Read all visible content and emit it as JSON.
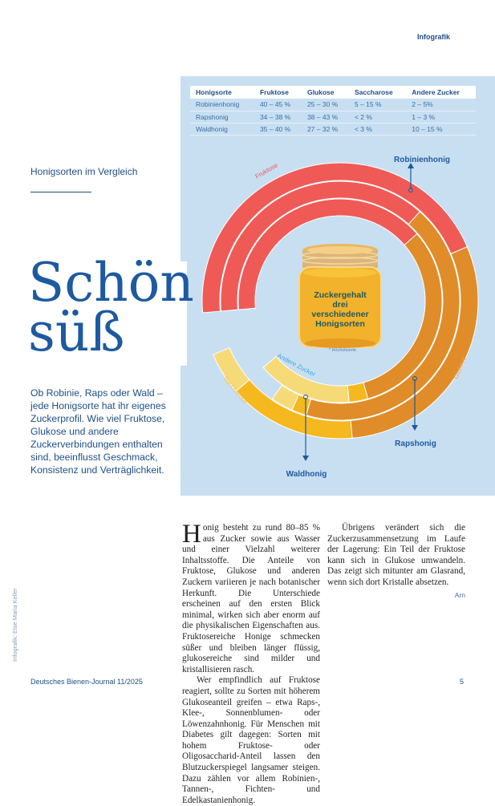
{
  "header": {
    "kicker": "Infografik"
  },
  "infographic": {
    "colors": {
      "background": "#c8dff2",
      "Fruktose": "#ef5a56",
      "Glukose": "#e08c29",
      "Saccharose": "#f6b81f",
      "Andere Zucker": "#f6da78",
      "text": "#1d4f86"
    },
    "table": {
      "headers": [
        "Honigsorte",
        "Fruktose",
        "Glukose",
        "Saccharose",
        "Andere Zucker"
      ],
      "rows": [
        [
          "Robinienhonig",
          "40 – 45 %",
          "25 – 30 %",
          "5 – 15 %",
          "2 – 5%"
        ],
        [
          "Rapshonig",
          "34 – 38 %",
          "38 – 43 %",
          "<  2 %",
          "1 – 3 %"
        ],
        [
          "Waldhonig",
          "35 – 40 %",
          "27 – 32 %",
          "<  3 %",
          "10 – 15 %"
        ]
      ]
    },
    "jar_text": [
      "Zuckergehalt",
      "drei",
      "verschiedener",
      "Honigsorten"
    ],
    "footnote": "* Höchstwerte",
    "ring_labels": {
      "fruktose": "Fruktose",
      "glukose": "Glukose",
      "saccharose": "Saccharose",
      "andere": "Andere Zucker"
    },
    "rings": [
      {
        "name": "Robinienhonig",
        "values": {
          "Fruktose": 45,
          "Glukose": 30,
          "Saccharose": 15,
          "Andere Zucker": 5
        }
      },
      {
        "name": "Rapshonig",
        "values": {
          "Fruktose": 38,
          "Glukose": 43,
          "Saccharose": 2,
          "Andere Zucker": 3
        }
      },
      {
        "name": "Waldhonig",
        "values": {
          "Fruktose": 40,
          "Glukose": 32,
          "Saccharose": 3,
          "Andere Zucker": 15
        }
      }
    ]
  },
  "article": {
    "subtitle": "Honigsorten im Vergleich",
    "title_line1": "Schön",
    "title_line2": "süß",
    "intro": "Ob Robinie, Raps oder Wald – jede Honigsorte hat ihr eigenes Zuckerprofil. Wie viel Fruktose, Glukose und andere Zuckerverbindungen enthalten sind, beeinflusst Geschmack, Konsistenz und Verträglichkeit.",
    "dropcap": "H",
    "p1": "onig besteht zu rund 80–85 % aus Zucker sowie aus Wasser und einer Vielzahl weiterer Inhaltsstoffe. Die Anteile von Fruktose, Glukose und anderen Zuckern variieren je nach botanischer Herkunft. Die Unterschiede erscheinen auf den ersten Blick minimal, wirken sich aber enorm auf die physikalischen Eigenschaften aus. Fruktosereiche Honige schmecken süßer und bleiben länger flüssig, glukosereiche sind milder und kristallisieren rasch.",
    "p2": "Wer empfindlich auf Fruktose reagiert, sollte zu Sorten mit höherem Glukoseanteil greifen – etwa Raps-, Klee-, Sonnenblumen- oder Löwenzahnhonig. Für Menschen mit Diabetes gilt dagegen: Sorten mit hohem Fruktose- oder Oligosaccharid-Anteil lassen den Blutzuckerspiegel langsamer steigen. Dazu zählen vor allem Robinien-, Tannen-, Fichten- und Edelkastanienhonig.",
    "p3": "Übrigens verändert sich die Zuckerzusammensetzung im Laufe der Lagerung: Ein Teil der Fruktose kann sich in Glukose umwandeln. Das zeigt sich mitunter am Glasrand, wenn sich dort Kristalle absetzen.",
    "author": "Arn"
  },
  "credit": "Infografik: Else Maria Keller",
  "footer": {
    "publication": "Deutsches Bienen-Journal 11/2025",
    "page": "5"
  }
}
